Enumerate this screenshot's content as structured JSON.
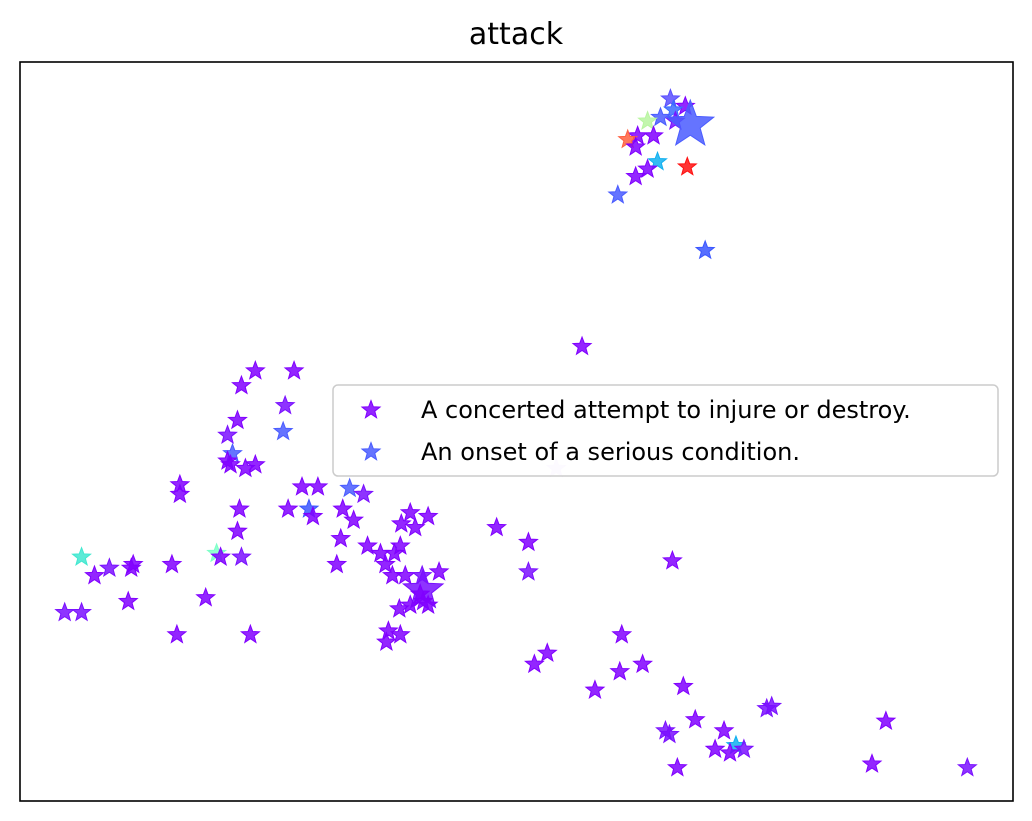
{
  "chart_data": {
    "type": "scatter",
    "title": "attack",
    "xlabel": "",
    "ylabel": "",
    "xlim": [
      0,
      100
    ],
    "ylim": [
      0,
      100
    ],
    "xticks": false,
    "yticks": false,
    "grid": false,
    "legend_position": "center-right",
    "marker": "star",
    "legend": [
      {
        "label": "A concerted attempt to injure or destroy.",
        "color": "#8000ff"
      },
      {
        "label": "An onset of a serious condition.",
        "color": "#4a5cff"
      }
    ],
    "points": [
      {
        "x": 65.5,
        "y": 95.0,
        "color": "#5a4fff",
        "size": 1
      },
      {
        "x": 67.0,
        "y": 94.0,
        "color": "#8000ff",
        "size": 1
      },
      {
        "x": 65.8,
        "y": 93.5,
        "color": "#3a6bff",
        "size": 1
      },
      {
        "x": 64.5,
        "y": 92.5,
        "color": "#4a5cff",
        "size": 1
      },
      {
        "x": 66.0,
        "y": 92.0,
        "color": "#7a10ff",
        "size": 1
      },
      {
        "x": 63.2,
        "y": 92.0,
        "color": "#b8f5a0",
        "size": 1
      },
      {
        "x": 67.5,
        "y": 91.5,
        "color": "#4a5cff",
        "size": 2.6
      },
      {
        "x": 62.2,
        "y": 90.0,
        "color": "#8000ff",
        "size": 1
      },
      {
        "x": 63.8,
        "y": 90.0,
        "color": "#8000ff",
        "size": 1
      },
      {
        "x": 61.2,
        "y": 89.5,
        "color": "#ff6040",
        "size": 1
      },
      {
        "x": 62.0,
        "y": 88.5,
        "color": "#8000ff",
        "size": 1
      },
      {
        "x": 64.2,
        "y": 86.5,
        "color": "#10b0f0",
        "size": 1
      },
      {
        "x": 67.2,
        "y": 85.8,
        "color": "#ff1010",
        "size": 1
      },
      {
        "x": 63.2,
        "y": 85.5,
        "color": "#8000ff",
        "size": 1
      },
      {
        "x": 62.0,
        "y": 84.5,
        "color": "#8000ff",
        "size": 1
      },
      {
        "x": 60.2,
        "y": 82.0,
        "color": "#4a5cff",
        "size": 1
      },
      {
        "x": 69.0,
        "y": 74.5,
        "color": "#3a56ff",
        "size": 1
      },
      {
        "x": 56.6,
        "y": 61.5,
        "color": "#8000ff",
        "size": 1
      },
      {
        "x": 23.7,
        "y": 58.2,
        "color": "#8000ff",
        "size": 1
      },
      {
        "x": 27.6,
        "y": 58.2,
        "color": "#8000ff",
        "size": 1
      },
      {
        "x": 22.3,
        "y": 56.2,
        "color": "#8000ff",
        "size": 1
      },
      {
        "x": 26.7,
        "y": 53.5,
        "color": "#7a10ff",
        "size": 1
      },
      {
        "x": 21.9,
        "y": 51.5,
        "color": "#8000ff",
        "size": 1
      },
      {
        "x": 26.5,
        "y": 50.0,
        "color": "#4a5cff",
        "size": 1
      },
      {
        "x": 20.9,
        "y": 49.5,
        "color": "#7a10ff",
        "size": 1
      },
      {
        "x": 21.4,
        "y": 47.0,
        "color": "#4a5cff",
        "size": 1
      },
      {
        "x": 20.9,
        "y": 46.0,
        "color": "#8000ff",
        "size": 1
      },
      {
        "x": 21.2,
        "y": 45.5,
        "color": "#8000ff",
        "size": 1
      },
      {
        "x": 22.7,
        "y": 45.0,
        "color": "#8000ff",
        "size": 1
      },
      {
        "x": 23.7,
        "y": 45.5,
        "color": "#8000ff",
        "size": 1
      },
      {
        "x": 54.0,
        "y": 45.0,
        "color": "#e8d8ff",
        "size": 1
      },
      {
        "x": 16.1,
        "y": 42.8,
        "color": "#8000ff",
        "size": 1
      },
      {
        "x": 16.1,
        "y": 41.5,
        "color": "#8000ff",
        "size": 1
      },
      {
        "x": 28.4,
        "y": 42.5,
        "color": "#8000ff",
        "size": 1
      },
      {
        "x": 30.0,
        "y": 42.5,
        "color": "#8000ff",
        "size": 1
      },
      {
        "x": 33.2,
        "y": 42.3,
        "color": "#4a5cff",
        "size": 1
      },
      {
        "x": 34.6,
        "y": 41.5,
        "color": "#7a10ff",
        "size": 1
      },
      {
        "x": 22.1,
        "y": 39.5,
        "color": "#8000ff",
        "size": 1
      },
      {
        "x": 27.0,
        "y": 39.5,
        "color": "#8000ff",
        "size": 1
      },
      {
        "x": 29.1,
        "y": 39.5,
        "color": "#3a56ff",
        "size": 1
      },
      {
        "x": 29.5,
        "y": 38.5,
        "color": "#8000ff",
        "size": 1
      },
      {
        "x": 32.5,
        "y": 39.5,
        "color": "#8000ff",
        "size": 1
      },
      {
        "x": 33.6,
        "y": 38.0,
        "color": "#8000ff",
        "size": 1
      },
      {
        "x": 39.3,
        "y": 39.0,
        "color": "#8000ff",
        "size": 1
      },
      {
        "x": 41.1,
        "y": 38.5,
        "color": "#8000ff",
        "size": 1
      },
      {
        "x": 38.4,
        "y": 37.5,
        "color": "#8000ff",
        "size": 1
      },
      {
        "x": 39.8,
        "y": 37.0,
        "color": "#8000ff",
        "size": 1
      },
      {
        "x": 48.0,
        "y": 37.0,
        "color": "#8000ff",
        "size": 1
      },
      {
        "x": 21.9,
        "y": 36.5,
        "color": "#8000ff",
        "size": 1
      },
      {
        "x": 32.3,
        "y": 35.5,
        "color": "#8000ff",
        "size": 1
      },
      {
        "x": 51.2,
        "y": 35.0,
        "color": "#8000ff",
        "size": 1
      },
      {
        "x": 38.3,
        "y": 34.5,
        "color": "#8000ff",
        "size": 1
      },
      {
        "x": 35.0,
        "y": 34.5,
        "color": "#8000ff",
        "size": 1
      },
      {
        "x": 36.3,
        "y": 33.5,
        "color": "#8000ff",
        "size": 1
      },
      {
        "x": 37.7,
        "y": 33.5,
        "color": "#8000ff",
        "size": 1
      },
      {
        "x": 22.3,
        "y": 33.0,
        "color": "#7a10ff",
        "size": 1
      },
      {
        "x": 19.8,
        "y": 33.5,
        "color": "#7dffc8",
        "size": 1
      },
      {
        "x": 20.2,
        "y": 33.0,
        "color": "#8000ff",
        "size": 1
      },
      {
        "x": 6.2,
        "y": 33.0,
        "color": "#40e8d0",
        "size": 1
      },
      {
        "x": 65.7,
        "y": 32.5,
        "color": "#8000ff",
        "size": 1
      },
      {
        "x": 11.4,
        "y": 32.0,
        "color": "#8000ff",
        "size": 1
      },
      {
        "x": 15.3,
        "y": 32.0,
        "color": "#8000ff",
        "size": 1
      },
      {
        "x": 11.2,
        "y": 31.5,
        "color": "#8000ff",
        "size": 1
      },
      {
        "x": 31.9,
        "y": 32.0,
        "color": "#8000ff",
        "size": 1
      },
      {
        "x": 36.8,
        "y": 32.0,
        "color": "#8000ff",
        "size": 1
      },
      {
        "x": 9.0,
        "y": 31.5,
        "color": "#7a10ff",
        "size": 1
      },
      {
        "x": 7.5,
        "y": 30.5,
        "color": "#8000ff",
        "size": 1
      },
      {
        "x": 37.5,
        "y": 30.5,
        "color": "#8000ff",
        "size": 1
      },
      {
        "x": 38.8,
        "y": 30.5,
        "color": "#8000ff",
        "size": 1
      },
      {
        "x": 40.5,
        "y": 30.5,
        "color": "#7a10ff",
        "size": 1
      },
      {
        "x": 42.2,
        "y": 31.0,
        "color": "#8000ff",
        "size": 1
      },
      {
        "x": 51.2,
        "y": 31.0,
        "color": "#7a10ff",
        "size": 1
      },
      {
        "x": 40.6,
        "y": 28.5,
        "color": "#7a10ff",
        "size": 2.2
      },
      {
        "x": 40.3,
        "y": 28.0,
        "color": "#8000ff",
        "size": 1
      },
      {
        "x": 40.6,
        "y": 27.0,
        "color": "#8000ff",
        "size": 1
      },
      {
        "x": 41.1,
        "y": 26.5,
        "color": "#8000ff",
        "size": 1
      },
      {
        "x": 18.7,
        "y": 27.5,
        "color": "#8000ff",
        "size": 1
      },
      {
        "x": 10.9,
        "y": 27.0,
        "color": "#8000ff",
        "size": 1
      },
      {
        "x": 39.3,
        "y": 26.5,
        "color": "#8000ff",
        "size": 1
      },
      {
        "x": 38.2,
        "y": 26.0,
        "color": "#8000ff",
        "size": 1
      },
      {
        "x": 4.5,
        "y": 25.5,
        "color": "#7a10ff",
        "size": 1
      },
      {
        "x": 6.2,
        "y": 25.5,
        "color": "#7a10ff",
        "size": 1
      },
      {
        "x": 37.1,
        "y": 23.0,
        "color": "#8000ff",
        "size": 1
      },
      {
        "x": 38.3,
        "y": 22.5,
        "color": "#8000ff",
        "size": 1
      },
      {
        "x": 36.9,
        "y": 21.5,
        "color": "#8000ff",
        "size": 1
      },
      {
        "x": 15.8,
        "y": 22.5,
        "color": "#8000ff",
        "size": 1
      },
      {
        "x": 23.2,
        "y": 22.5,
        "color": "#8000ff",
        "size": 1
      },
      {
        "x": 60.6,
        "y": 22.5,
        "color": "#8000ff",
        "size": 1
      },
      {
        "x": 53.1,
        "y": 20.0,
        "color": "#8000ff",
        "size": 1
      },
      {
        "x": 51.8,
        "y": 18.5,
        "color": "#8000ff",
        "size": 1
      },
      {
        "x": 62.7,
        "y": 18.5,
        "color": "#8000ff",
        "size": 1
      },
      {
        "x": 60.4,
        "y": 17.5,
        "color": "#8000ff",
        "size": 1
      },
      {
        "x": 57.9,
        "y": 15.0,
        "color": "#8000ff",
        "size": 1
      },
      {
        "x": 66.8,
        "y": 15.5,
        "color": "#8000ff",
        "size": 1
      },
      {
        "x": 75.2,
        "y": 12.5,
        "color": "#7a10ff",
        "size": 1
      },
      {
        "x": 75.7,
        "y": 12.8,
        "color": "#7a10ff",
        "size": 1
      },
      {
        "x": 68.0,
        "y": 11.0,
        "color": "#8000ff",
        "size": 1
      },
      {
        "x": 65.0,
        "y": 9.5,
        "color": "#7a10ff",
        "size": 1
      },
      {
        "x": 65.4,
        "y": 9.0,
        "color": "#7a10ff",
        "size": 1
      },
      {
        "x": 70.9,
        "y": 9.5,
        "color": "#8000ff",
        "size": 1
      },
      {
        "x": 87.2,
        "y": 10.8,
        "color": "#8000ff",
        "size": 1
      },
      {
        "x": 72.1,
        "y": 7.5,
        "color": "#10b0f0",
        "size": 1
      },
      {
        "x": 70.0,
        "y": 7.0,
        "color": "#8000ff",
        "size": 1
      },
      {
        "x": 71.5,
        "y": 6.5,
        "color": "#8000ff",
        "size": 1
      },
      {
        "x": 72.9,
        "y": 7.0,
        "color": "#7a10ff",
        "size": 1
      },
      {
        "x": 66.2,
        "y": 4.5,
        "color": "#8000ff",
        "size": 1
      },
      {
        "x": 85.8,
        "y": 5.0,
        "color": "#8000ff",
        "size": 1
      },
      {
        "x": 95.4,
        "y": 4.5,
        "color": "#7a10ff",
        "size": 1
      }
    ]
  }
}
